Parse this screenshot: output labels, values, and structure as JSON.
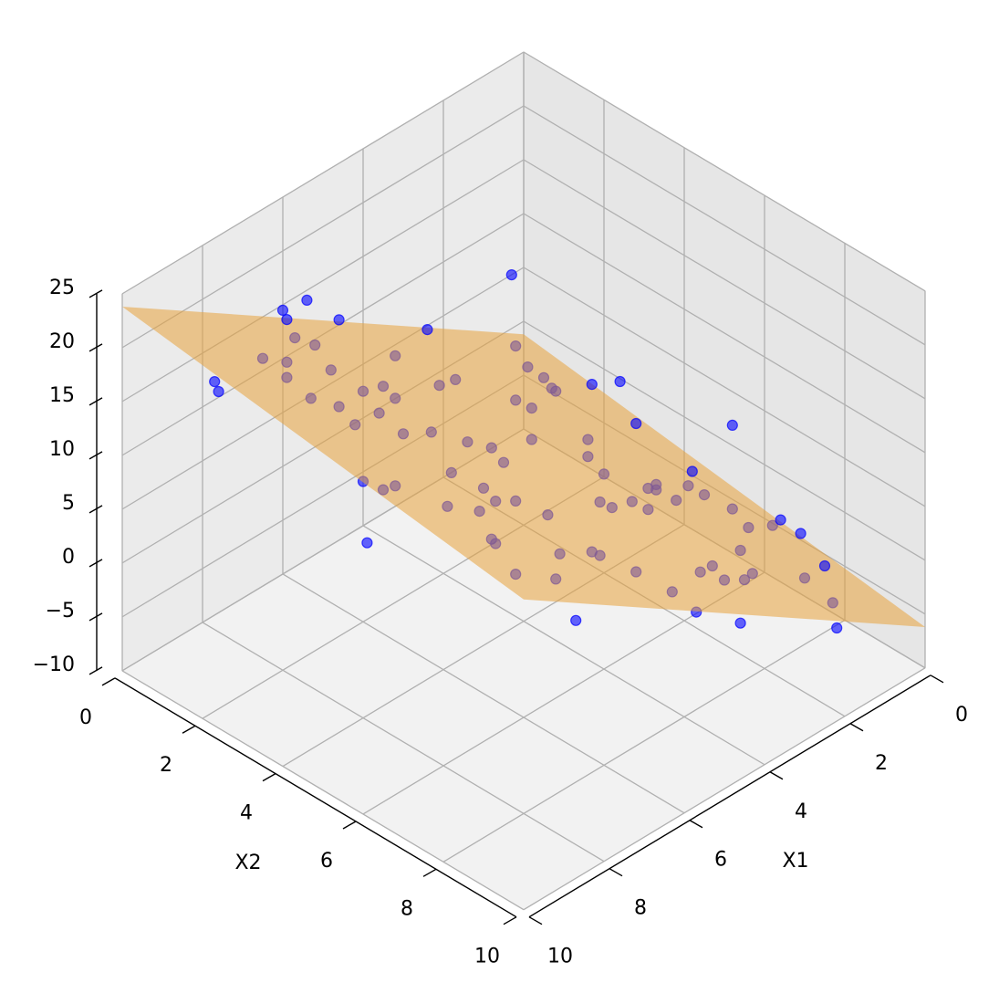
{
  "chart_data": {
    "type": "scatter3d",
    "xlabel": "X1",
    "ylabel": "X2",
    "xlim": [
      0,
      10
    ],
    "ylim": [
      0,
      10
    ],
    "zlim": [
      -10,
      25
    ],
    "xticks": [
      0,
      2,
      4,
      6,
      8,
      10
    ],
    "yticks": [
      0,
      2,
      4,
      6,
      8,
      10
    ],
    "zticks": [
      {
        "value": -10,
        "label": "−10"
      },
      {
        "value": -5,
        "label": "−5"
      },
      0,
      5,
      10,
      15,
      20,
      25
    ],
    "grid": true,
    "color": "#0000ff",
    "x": [
      6.1,
      6.0,
      5.7,
      7.7,
      7.1,
      3.9,
      0.3,
      0.7,
      0.7,
      0.8,
      0.9,
      3.2,
      3.9,
      6.2,
      7.8,
      6.2,
      5.4,
      5.5,
      7.8,
      7.4,
      7.6,
      6.5,
      6.7,
      5.8,
      2.3,
      2.2,
      3.3,
      1.8,
      2.4,
      2.7,
      4.8,
      5.2,
      5.0,
      6.8,
      9.3,
      8.8,
      6.5,
      8.2,
      7.5,
      6.6,
      6.1,
      5.7,
      8.2,
      8.2,
      8.9,
      7.9,
      6.9,
      5.9,
      5.9,
      5.5,
      3.8,
      3.7,
      2.9,
      2.0,
      1.6,
      1.8,
      2.8,
      1.7,
      0.8,
      0.7,
      0.4,
      0.7,
      1.7,
      3.2,
      3.7,
      3.3,
      2.8,
      2.3,
      5.2,
      5.3,
      1.1,
      1.2,
      1.4,
      6.3,
      7.3,
      6.2,
      4.1,
      9.9,
      9.9,
      1.7,
      0.8,
      1.9,
      0.9,
      8.3,
      8.9,
      6.9,
      2.9,
      2.1,
      1.5,
      1.6,
      0.0,
      2.1,
      2.2
    ],
    "y": [
      0.2,
      0.3,
      0.5,
      1.2,
      1.2,
      0.7,
      0.1,
      0.8,
      1.2,
      1.5,
      1.7,
      1.5,
      1.8,
      1.4,
      1.9,
      2.2,
      1.9,
      2.3,
      2.5,
      2.8,
      3.4,
      2.9,
      3.7,
      3.5,
      2.1,
      2.4,
      3.5,
      3.4,
      4.0,
      4.7,
      4.0,
      3.8,
      4.5,
      5.0,
      5.8,
      5.6,
      5.5,
      6.3,
      6.4,
      5.9,
      5.9,
      6.3,
      7.4,
      7.5,
      8.7,
      8.7,
      7.8,
      7.6,
      7.8,
      8.3,
      5.7,
      5.9,
      5.6,
      5.1,
      4.9,
      5.1,
      5.9,
      5.5,
      4.9,
      5.2,
      5.6,
      6.3,
      7.1,
      7.9,
      8.1,
      8.3,
      8.3,
      8.0,
      8.9,
      9.6,
      8.1,
      8.9,
      1.1,
      0.9,
      1.3,
      1.6,
      1.7,
      2.2,
      2.3,
      3.4,
      3.2,
      4.7,
      6.1,
      4.3,
      5.0,
      8.2,
      8.3,
      9.9,
      8.4,
      8.0,
      6.2,
      9.6,
      6.4
    ],
    "z": [
      14.3,
      12.6,
      11.7,
      16.5,
      14.8,
      7.1,
      -1.4,
      -0.9,
      -1.0,
      -1.1,
      -0.7,
      5.1,
      6.8,
      12.5,
      16.5,
      12.3,
      10.3,
      10.3,
      15.9,
      14.9,
      15.0,
      12.5,
      12.8,
      10.5,
      2.5,
      2.2,
      4.2,
      0.6,
      1.7,
      2.3,
      7.9,
      8.9,
      8.1,
      12.3,
      18.1,
      16.9,
      11.3,
      15.2,
      13.4,
      11.2,
      10.1,
      8.8,
      14.6,
      14.4,
      15.8,
      13.1,
      11.2,
      8.7,
      8.8,
      7.5,
      4.4,
      4.1,
      2.2,
      0.3,
      -0.7,
      -0.3,
      1.9,
      -0.6,
      -2.6,
      -3.0,
      -4.1,
      -3.6,
      -1.7,
      2.0,
      3.0,
      1.8,
      0.7,
      -0.5,
      6.3,
      6.2,
      -3.4,
      -3.7,
      9.9,
      18.1,
      20.3,
      17.6,
      12.2,
      21.5,
      20.8,
      5.5,
      3.3,
      5.2,
      5.9,
      13.3,
      10.5,
      5.9,
      -3.1,
      -1.8,
      2.3,
      2.9,
      -5.2,
      3.3,
      5.2
    ],
    "surface": {
      "x": [
        0,
        10
      ],
      "y": [
        0,
        10
      ],
      "z": [
        [
          -1.2,
          -6.2
        ],
        [
          23.8,
          18.8
        ]
      ],
      "color": "#e8a33d"
    }
  }
}
